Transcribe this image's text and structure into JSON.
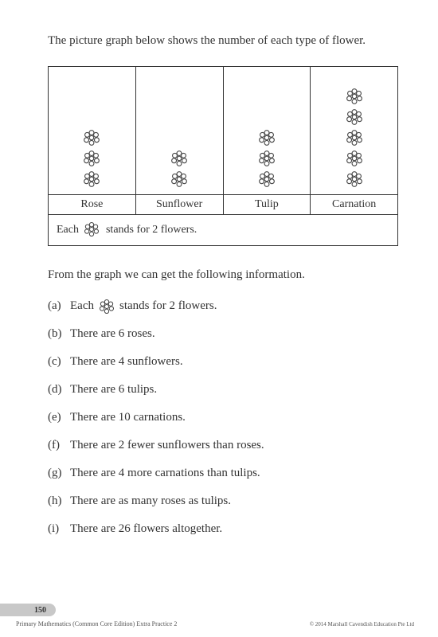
{
  "intro_text": "The picture graph below shows the number of each type of flower.",
  "chart": {
    "type": "pictograph",
    "icon": "flower-outline",
    "icon_stroke_color": "#444444",
    "icon_fill_color": "#ffffff",
    "border_color": "#333333",
    "background_color": "#ffffff",
    "categories": [
      {
        "label": "Rose",
        "count": 3
      },
      {
        "label": "Sunflower",
        "count": 2
      },
      {
        "label": "Tulip",
        "count": 3
      },
      {
        "label": "Carnation",
        "count": 5
      }
    ],
    "legend_prefix": "Each",
    "legend_suffix": "stands for 2 flowers."
  },
  "info_line": "From the graph we can get the following information.",
  "items": [
    {
      "label": "(a)",
      "prefix": "Each",
      "has_icon": true,
      "suffix": "stands for 2 flowers."
    },
    {
      "label": "(b)",
      "text": "There are 6 roses."
    },
    {
      "label": "(c)",
      "text": "There are 4 sunflowers."
    },
    {
      "label": "(d)",
      "text": "There are 6 tulips."
    },
    {
      "label": "(e)",
      "text": "There are 10 carnations."
    },
    {
      "label": "(f)",
      "text": "There are 2 fewer sunflowers than roses."
    },
    {
      "label": "(g)",
      "text": "There are 4 more carnations than tulips."
    },
    {
      "label": "(h)",
      "text": "There are as many roses as tulips."
    },
    {
      "label": "(i)",
      "text": "There are 26 flowers altogether."
    }
  ],
  "footer": {
    "page_number": "150",
    "book_title": "Primary Mathematics (Common Core Edition) Extra Practice 2",
    "copyright": "© 2014 Marshall Cavendish Education Pte Ltd"
  },
  "typography": {
    "body_fontsize": 15,
    "label_fontsize": 14,
    "footer_fontsize": 8
  }
}
